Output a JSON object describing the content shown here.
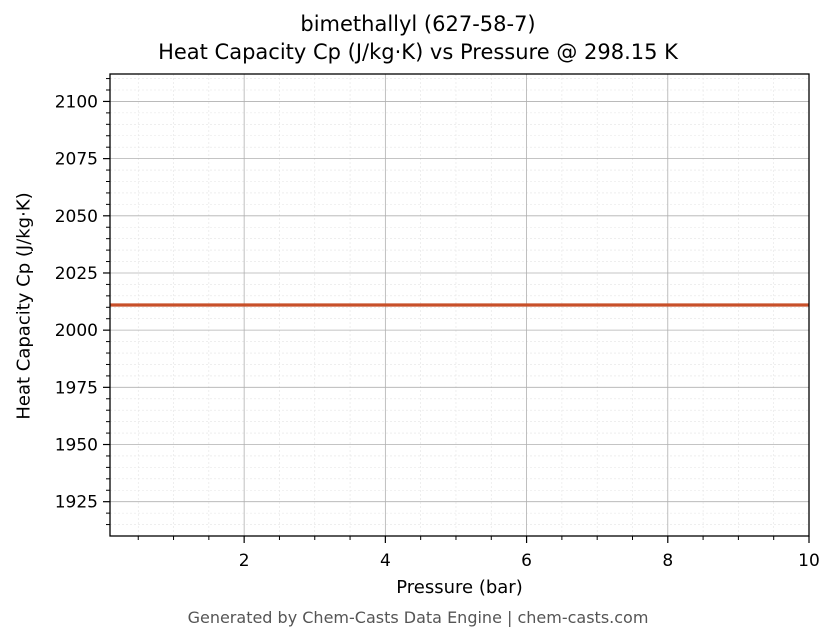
{
  "chart_data": {
    "type": "line",
    "title": "bimethallyl (627-58-7)",
    "subtitle": "Heat Capacity Cp (J/kg·K) vs Pressure @ 298.15 K",
    "xlabel": "Pressure (bar)",
    "ylabel": "Heat Capacity Cp (J/kg·K)",
    "xlim": [
      0.1,
      10
    ],
    "ylim": [
      1910,
      2112
    ],
    "x_ticks": [
      2,
      4,
      6,
      8,
      10
    ],
    "y_ticks": [
      1925,
      1950,
      1975,
      2000,
      2025,
      2050,
      2075,
      2100
    ],
    "grid": true,
    "series": [
      {
        "color": "#c8502a",
        "x": [
          0.1,
          1,
          2,
          3,
          4,
          5,
          6,
          7,
          8,
          9,
          10
        ],
        "y": [
          2011,
          2011,
          2011,
          2011,
          2011,
          2011,
          2011,
          2011,
          2011,
          2011,
          2011
        ]
      }
    ]
  },
  "footer": "Generated by Chem-Casts Data Engine | chem-casts.com"
}
